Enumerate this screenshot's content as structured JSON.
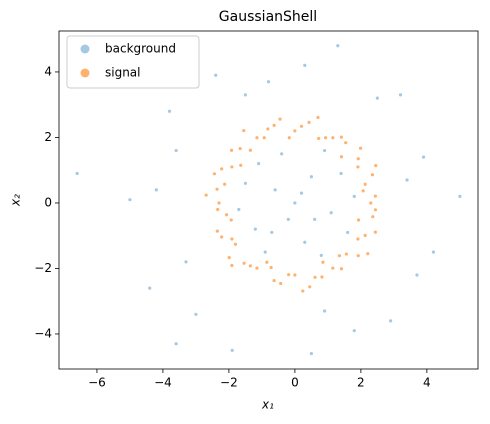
{
  "chart_data": {
    "type": "scatter",
    "title": "GaussianShell",
    "xlabel": "x₁",
    "ylabel": "x₂",
    "xlim": [
      -7.15,
      5.55
    ],
    "ylim": [
      -5.07,
      5.25
    ],
    "xticks": [
      {
        "value": -6,
        "label": "−6"
      },
      {
        "value": -4,
        "label": "−4"
      },
      {
        "value": -2,
        "label": "−2"
      },
      0,
      2,
      4
    ],
    "yticks": [
      {
        "value": -4,
        "label": "−4"
      },
      {
        "value": -2,
        "label": "−2"
      },
      0,
      2,
      4
    ],
    "legend": "upper left",
    "series": [
      {
        "name": "background",
        "color": "#1f77b4",
        "opacity": 0.4,
        "x": [
          0,
          0.5,
          -0.6,
          1.1,
          -1.2,
          0.3,
          -0.4,
          1.4,
          -1.5,
          0.8,
          -0.9,
          1.6,
          0.2,
          -0.2,
          0.9,
          -1.7,
          1.8,
          -0.7,
          0.6,
          -1.1,
          -6.6,
          -5.0,
          5.0,
          -4.4,
          -3.6,
          1.3,
          3.2,
          -3.8,
          -1.9,
          0.5,
          3.7,
          4.2,
          -4.2,
          2.9,
          -2.4,
          0.3,
          3.9,
          -3.3,
          1.8,
          -0.8,
          2.5,
          -3.0,
          3.4,
          -3.6,
          0.9,
          -1.5
        ],
        "values": [
          0,
          0.8,
          0.4,
          -0.3,
          -0.8,
          -1.2,
          1.5,
          0.9,
          0.6,
          -1.6,
          -1.5,
          -0.9,
          0.3,
          -0.5,
          1.6,
          -0.2,
          0.2,
          -0.9,
          -0.5,
          1.2,
          0.9,
          0.1,
          0.2,
          -2.6,
          -4.3,
          4.8,
          3.3,
          2.8,
          -4.5,
          -4.6,
          -2.2,
          -1.5,
          0.4,
          -3.6,
          3.9,
          4.2,
          1.4,
          -1.8,
          -3.9,
          3.7,
          3.2,
          -3.4,
          0.7,
          1.6,
          -3.3,
          3.3
        ]
      },
      {
        "name": "signal",
        "color": "#ff7f0e",
        "opacity": 0.6,
        "x": [
          2.3,
          2.07,
          2.35,
          1.91,
          1.99,
          1.54,
          1.15,
          0.72,
          0.43,
          0,
          -0.45,
          -0.82,
          -1.15,
          -1.35,
          -1.92,
          -1.91,
          -2.44,
          -2.36,
          -2.3,
          -2.07,
          -2.35,
          -1.91,
          -1.99,
          -1.54,
          -1.15,
          -0.72,
          -0.43,
          0,
          0.45,
          0.82,
          1.15,
          1.35,
          1.92,
          1.91,
          2.44,
          2.36,
          2.44,
          2.13,
          2.45,
          1.92,
          1.41,
          1.41,
          0.93,
          0.7,
          0.2,
          -0.17,
          -0.63,
          -0.93,
          -1.55,
          -1.66,
          -1.64,
          -2.22,
          -2.13,
          -2.69,
          -2.34,
          -1.93,
          -2.22,
          -1.8,
          -1.91,
          -1.35,
          -0.85,
          -0.63,
          -0.19,
          0.24,
          0.61,
          0.85,
          1.41,
          1.56,
          2.21,
          2.13,
          1.93,
          2.44
        ],
        "values": [
          0,
          0.37,
          0.86,
          1.1,
          1.67,
          1.84,
          1.99,
          1.97,
          2.46,
          2.2,
          2.56,
          2.26,
          1.99,
          1.61,
          1.61,
          1.1,
          0.89,
          0.42,
          0,
          -0.36,
          -0.86,
          -1.1,
          -1.67,
          -1.84,
          -1.99,
          -1.97,
          -2.46,
          -2.2,
          -2.56,
          -2.26,
          -1.99,
          -1.61,
          -1.61,
          -1.1,
          -0.89,
          -0.42,
          0.21,
          0.57,
          1.14,
          1.35,
          1.41,
          2.01,
          1.99,
          2.61,
          2.34,
          1.99,
          2.37,
          1.99,
          2.21,
          1.66,
          1.15,
          1.04,
          0.57,
          0.24,
          -0.2,
          -0.52,
          -1.04,
          -1.26,
          -1.91,
          -1.92,
          -1.81,
          -2.37,
          -2.19,
          -2.69,
          -2.27,
          -1.81,
          -2.01,
          -1.56,
          -1.55,
          -0.99,
          -0.52,
          -0.21
        ]
      }
    ]
  }
}
